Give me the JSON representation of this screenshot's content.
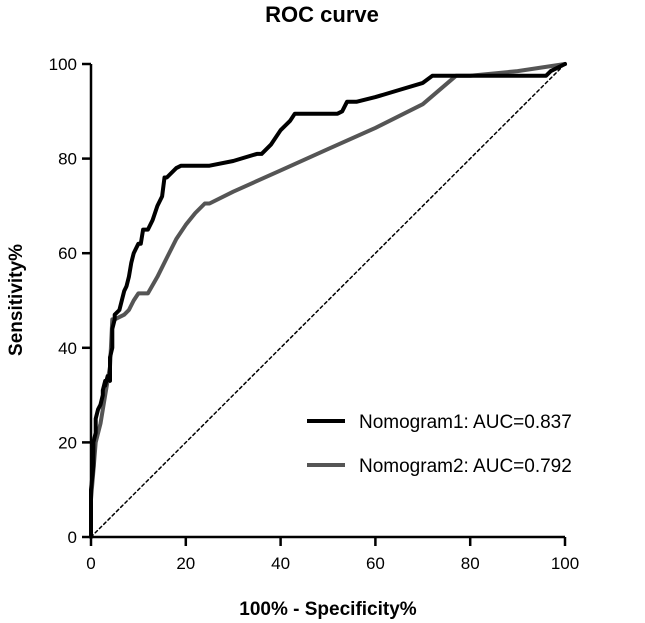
{
  "chart_data": {
    "type": "line",
    "title": "ROC curve",
    "xlabel": "100% - Specificity%",
    "ylabel": "Sensitivity%",
    "xlim": [
      0,
      100
    ],
    "ylim": [
      0,
      100
    ],
    "xticks": [
      0,
      20,
      40,
      60,
      80,
      100
    ],
    "yticks": [
      0,
      20,
      40,
      60,
      80,
      100
    ],
    "x_tick_labels": [
      "0",
      "20",
      "40",
      "60",
      "80",
      "100"
    ],
    "y_tick_labels": [
      "0",
      "20",
      "40",
      "60",
      "80",
      "100"
    ],
    "grid": false,
    "legend_position": "bottom-right",
    "series": [
      {
        "name": "Nomogram1: AUC=0.837",
        "color": "#000000",
        "x": [
          0,
          0,
          0.5,
          0.5,
          1,
          1,
          1.5,
          2,
          2.5,
          2.5,
          3,
          3,
          3.5,
          4,
          4,
          4.5,
          4.5,
          5,
          5,
          6,
          6.5,
          7,
          7.5,
          8,
          8.5,
          9,
          9.5,
          10,
          10.5,
          11,
          11.5,
          12,
          13,
          14,
          15,
          15.5,
          16,
          18,
          19,
          20,
          22,
          25,
          30,
          35,
          36,
          38,
          40,
          42,
          43,
          45,
          47,
          50,
          52,
          53,
          54,
          56,
          60,
          65,
          70,
          72,
          75,
          80,
          85,
          90,
          95,
          96,
          97,
          100
        ],
        "y": [
          0,
          10,
          15,
          20,
          22,
          25,
          27,
          28,
          30,
          31,
          33,
          32,
          34,
          33,
          38,
          40,
          44,
          46,
          47,
          48,
          50,
          52,
          53,
          55,
          58,
          60,
          61,
          62,
          62,
          65,
          65,
          65,
          67,
          70,
          72,
          76,
          76,
          78,
          78.5,
          78.5,
          78.5,
          78.5,
          79.5,
          81,
          81,
          83,
          86,
          88,
          89.5,
          89.5,
          89.5,
          89.5,
          89.5,
          90,
          92,
          92,
          93,
          94.5,
          96,
          97.5,
          97.5,
          97.5,
          97.5,
          97.5,
          97.5,
          97.5,
          98.5,
          100
        ]
      },
      {
        "name": "Nomogram2: AUC=0.792",
        "color": "#555555",
        "x": [
          0,
          0,
          0.5,
          1,
          2,
          3,
          4,
          4.5,
          5,
          6,
          7,
          8,
          9,
          10,
          11,
          12,
          14,
          16,
          18,
          20,
          22,
          24,
          25,
          30,
          40,
          50,
          60,
          70,
          77,
          80,
          90,
          100
        ],
        "y": [
          0,
          8,
          14,
          20,
          24,
          30,
          36,
          46,
          46,
          46.5,
          47,
          48,
          50,
          51.5,
          51.5,
          51.5,
          55,
          59,
          63,
          66,
          68.5,
          70.5,
          70.5,
          73,
          77.5,
          82,
          86.5,
          91.5,
          97.5,
          97.5,
          98.5,
          100
        ]
      },
      {
        "name": "Reference",
        "color": "#000000",
        "x": [
          0,
          100
        ],
        "y": [
          0,
          100
        ],
        "dashed": true
      }
    ]
  }
}
